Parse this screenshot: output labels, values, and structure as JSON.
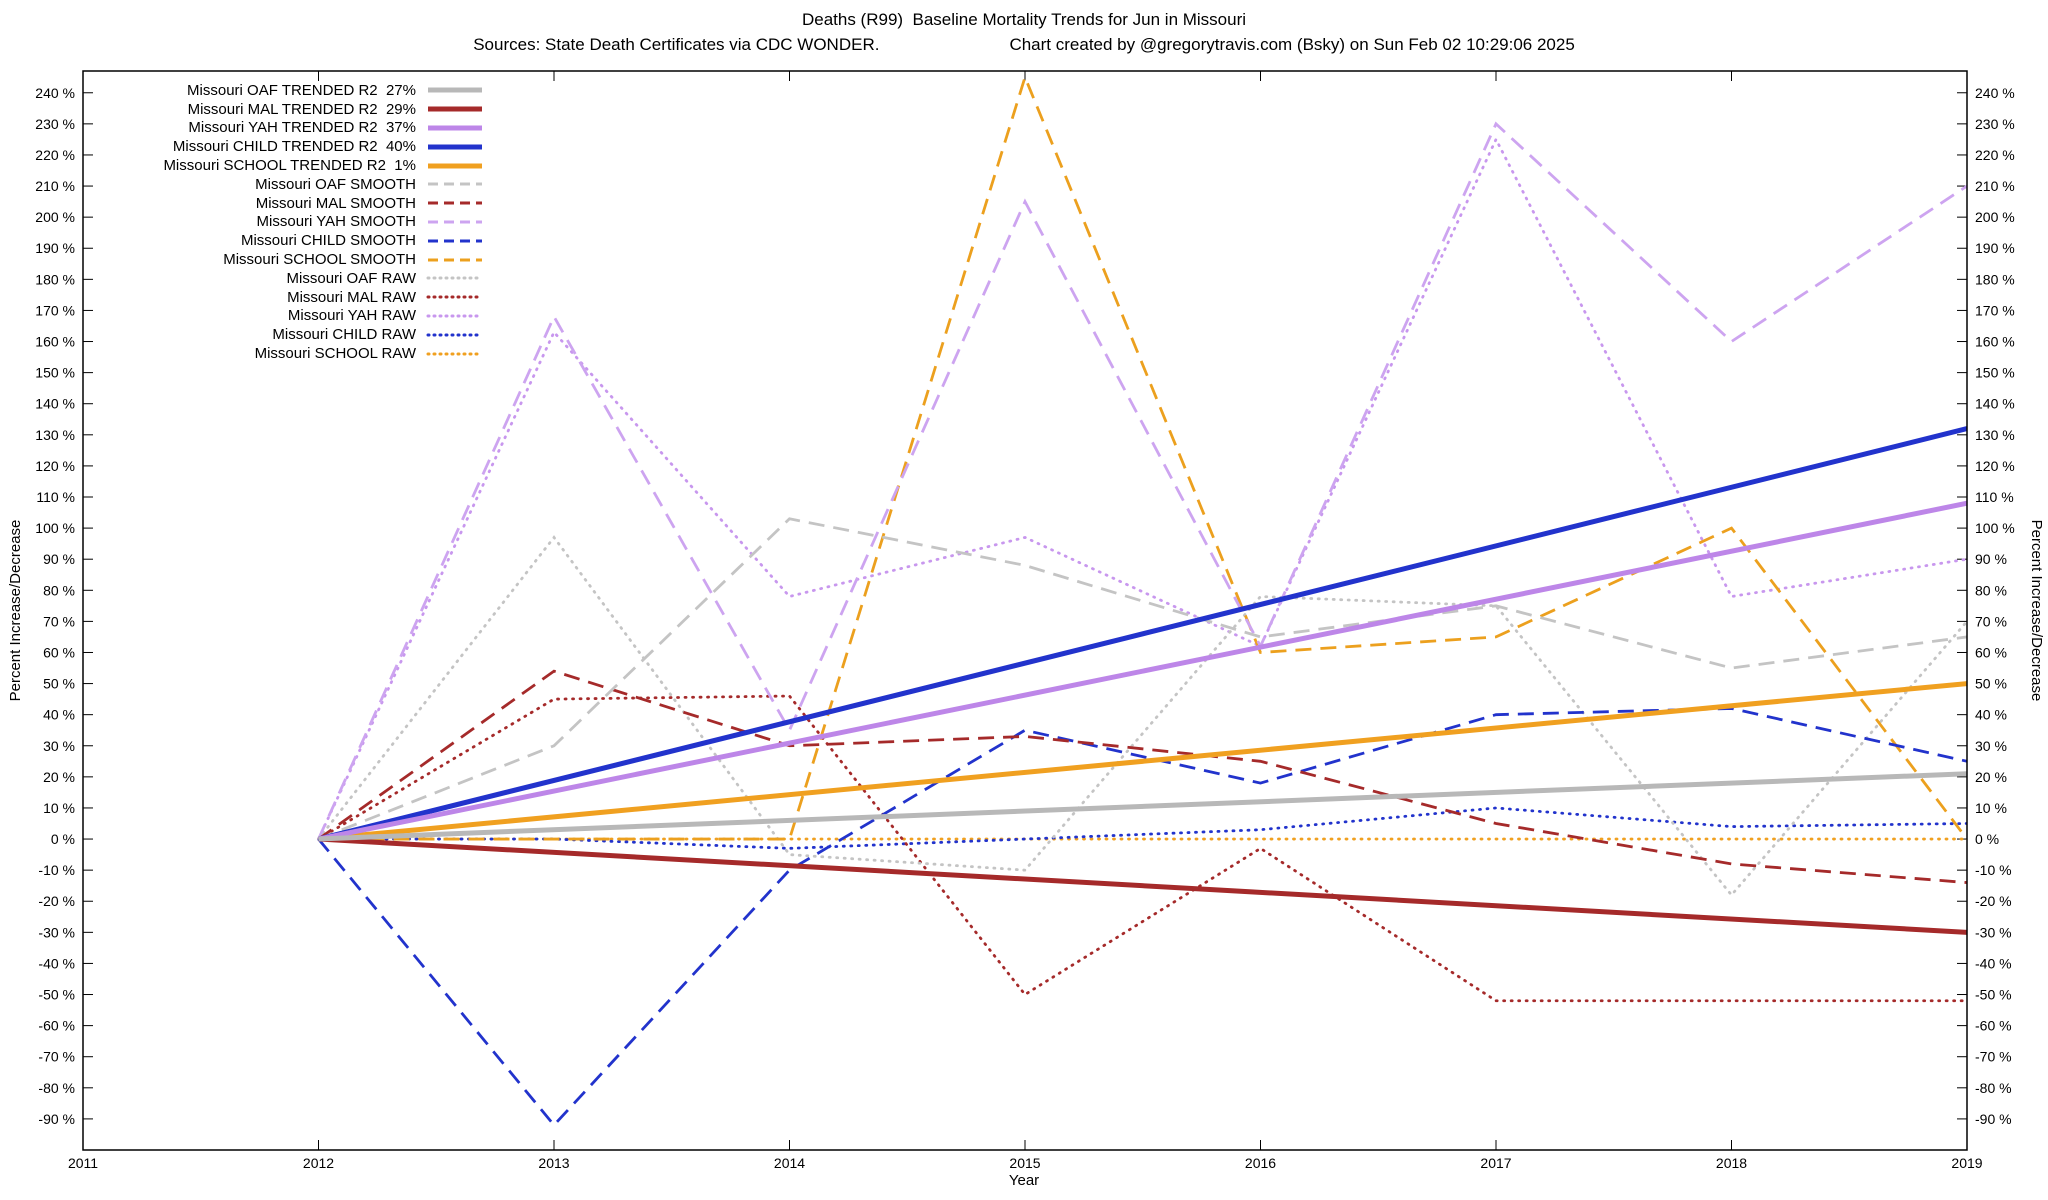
{
  "chart_data": {
    "type": "line",
    "title": "Deaths (R99)  Baseline Mortality Trends for Jun in Missouri",
    "source_note": "Sources: State Death Certificates via CDC WONDER.",
    "credit_note": "Chart created by @gregorytravis.com (Bsky) on Sun Feb 02 10:29:06 2025",
    "xlabel": "Year",
    "ylabel_left": "Percent Increase/Decrease",
    "ylabel_right": "Percent Increase/Decrease",
    "xlim": [
      2011,
      2019
    ],
    "ylim": [
      -100,
      247
    ],
    "x_ticks": [
      2011,
      2012,
      2013,
      2014,
      2015,
      2016,
      2017,
      2018,
      2019
    ],
    "y_tick_min": -90,
    "y_tick_max": 240,
    "y_tick_step": 10,
    "y_tick_suffix": " %",
    "grid": false,
    "legend_position": "top-left",
    "years": [
      2012,
      2013,
      2014,
      2015,
      2016,
      2017,
      2018,
      2019
    ],
    "series": [
      {
        "name": "oaf-trended",
        "legend_label": "Missouri OAF TRENDED R2  27%",
        "color": "#b8b8b8",
        "style": "trended",
        "x": [
          2012,
          2019
        ],
        "values": [
          0,
          21
        ]
      },
      {
        "name": "mal-trended",
        "legend_label": "Missouri MAL TRENDED R2  29%",
        "color": "#a52a2a",
        "style": "trended",
        "x": [
          2012,
          2019
        ],
        "values": [
          0,
          -30
        ]
      },
      {
        "name": "yah-trended",
        "legend_label": "Missouri YAH TRENDED R2  37%",
        "color": "#bd86e8",
        "style": "trended",
        "x": [
          2012,
          2019
        ],
        "values": [
          0,
          108
        ]
      },
      {
        "name": "child-trended",
        "legend_label": "Missouri CHILD TRENDED R2  40%",
        "color": "#2233cc",
        "style": "trended",
        "x": [
          2012,
          2019
        ],
        "values": [
          0,
          132
        ]
      },
      {
        "name": "school-trended",
        "legend_label": "Missouri SCHOOL TRENDED R2  1%",
        "color": "#f0a020",
        "style": "trended",
        "x": [
          2012,
          2019
        ],
        "values": [
          0,
          50
        ]
      },
      {
        "name": "oaf-smooth",
        "legend_label": "Missouri OAF SMOOTH",
        "color": "#c4c4c4",
        "style": "smooth",
        "x": [
          2012,
          2013,
          2014,
          2015,
          2016,
          2017,
          2018,
          2019
        ],
        "values": [
          0,
          30,
          103,
          88,
          65,
          75,
          55,
          65
        ]
      },
      {
        "name": "mal-smooth",
        "legend_label": "Missouri MAL SMOOTH",
        "color": "#a52a2a",
        "style": "smooth",
        "x": [
          2012,
          2013,
          2014,
          2015,
          2016,
          2017,
          2018,
          2019
        ],
        "values": [
          0,
          54,
          30,
          33,
          25,
          5,
          -8,
          -14
        ]
      },
      {
        "name": "yah-smooth",
        "legend_label": "Missouri YAH SMOOTH",
        "color": "#cda4f0",
        "style": "smooth",
        "x": [
          2012,
          2013,
          2014,
          2015,
          2016,
          2017,
          2018,
          2019
        ],
        "values": [
          0,
          168,
          35,
          205,
          62,
          230,
          160,
          210
        ]
      },
      {
        "name": "child-smooth",
        "legend_label": "Missouri CHILD SMOOTH",
        "color": "#2233cc",
        "style": "smooth",
        "x": [
          2012,
          2013,
          2014,
          2015,
          2016,
          2017,
          2018,
          2019
        ],
        "values": [
          0,
          -92,
          -10,
          35,
          18,
          40,
          42,
          25
        ]
      },
      {
        "name": "school-smooth",
        "legend_label": "Missouri SCHOOL SMOOTH",
        "color": "#eca01e",
        "style": "smooth",
        "x": [
          2012,
          2013,
          2014,
          2015,
          2016,
          2017,
          2018,
          2019
        ],
        "values": [
          0,
          0,
          0,
          245,
          60,
          65,
          100,
          0
        ]
      },
      {
        "name": "oaf-raw",
        "legend_label": "Missouri OAF RAW",
        "color": "#c4c4c4",
        "style": "raw",
        "x": [
          2012,
          2013,
          2014,
          2015,
          2016,
          2017,
          2018,
          2019
        ],
        "values": [
          0,
          97,
          -5,
          -10,
          78,
          75,
          -18,
          70
        ]
      },
      {
        "name": "mal-raw",
        "legend_label": "Missouri MAL RAW",
        "color": "#a52a2a",
        "style": "raw",
        "x": [
          2012,
          2013,
          2014,
          2015,
          2016,
          2017,
          2018,
          2019
        ],
        "values": [
          0,
          45,
          46,
          -50,
          -3,
          -52,
          -52,
          -52
        ]
      },
      {
        "name": "yah-raw",
        "legend_label": "Missouri YAH RAW",
        "color": "#c897ee",
        "style": "raw",
        "x": [
          2012,
          2013,
          2014,
          2015,
          2016,
          2017,
          2018,
          2019
        ],
        "values": [
          0,
          163,
          78,
          97,
          62,
          225,
          78,
          90
        ]
      },
      {
        "name": "child-raw",
        "legend_label": "Missouri CHILD RAW",
        "color": "#2233cc",
        "style": "raw",
        "x": [
          2012,
          2013,
          2014,
          2015,
          2016,
          2017,
          2018,
          2019
        ],
        "values": [
          0,
          0,
          -3,
          0,
          3,
          10,
          4,
          5
        ]
      },
      {
        "name": "school-raw",
        "legend_label": "Missouri SCHOOL RAW",
        "color": "#f0a020",
        "style": "raw",
        "x": [
          2012,
          2013,
          2014,
          2015,
          2016,
          2017,
          2018,
          2019
        ],
        "values": [
          0,
          0,
          0,
          0,
          0,
          0,
          0,
          0
        ]
      }
    ]
  }
}
